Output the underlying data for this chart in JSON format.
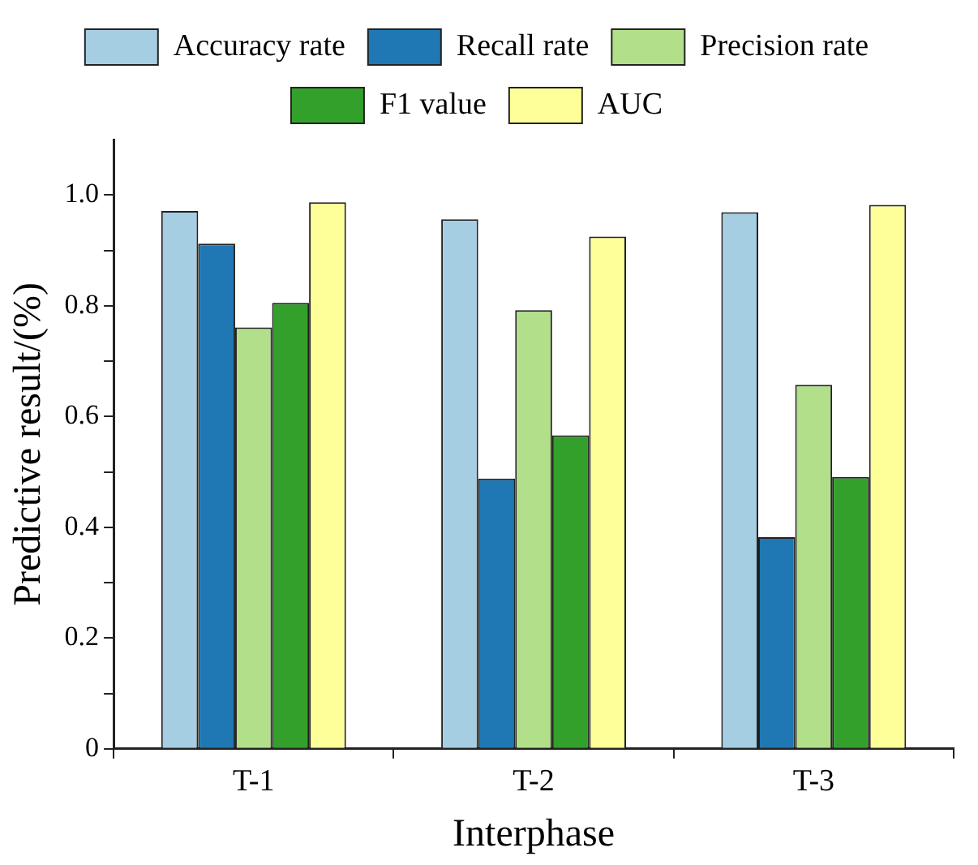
{
  "chart_data": {
    "type": "bar",
    "xlabel": "Interphase",
    "ylabel": "Predictive result/(%)",
    "categories": [
      "T-1",
      "T-2",
      "T-3"
    ],
    "series": [
      {
        "name": "Accuracy rate",
        "color": "#a6cee3",
        "values": [
          0.971,
          0.956,
          0.969
        ]
      },
      {
        "name": "Recall rate",
        "color": "#1f78b4",
        "values": [
          0.912,
          0.488,
          0.382
        ]
      },
      {
        "name": "Precision rate",
        "color": "#b2df8a",
        "values": [
          0.761,
          0.792,
          0.657
        ]
      },
      {
        "name": "F1 value",
        "color": "#33a02c",
        "values": [
          0.805,
          0.566,
          0.491
        ]
      },
      {
        "name": "AUC",
        "color": "#ffff99",
        "values": [
          0.987,
          0.925,
          0.982
        ]
      }
    ],
    "ylim": [
      0,
      1.1
    ],
    "yticks": [
      0,
      {
        "value": 0.1,
        "label": null
      },
      0.2,
      {
        "value": 0.3,
        "label": null
      },
      0.4,
      {
        "value": 0.5,
        "label": null
      },
      0.6,
      {
        "value": 0.7,
        "label": null
      },
      0.8,
      {
        "value": 0.9,
        "label": null
      },
      {
        "value": 1.0,
        "label": "1.0"
      }
    ],
    "grid": false,
    "legend": "top"
  }
}
